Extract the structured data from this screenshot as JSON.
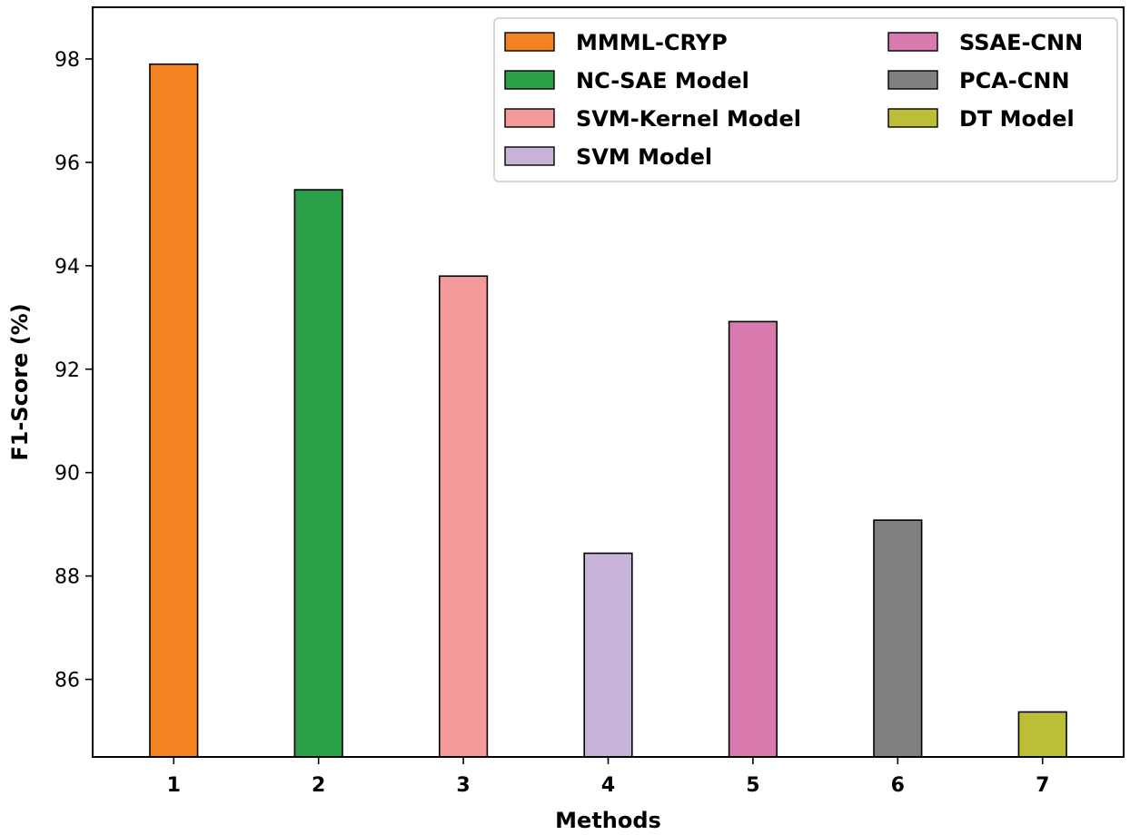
{
  "chart_data": {
    "type": "bar",
    "categories": [
      "1",
      "2",
      "3",
      "4",
      "5",
      "6",
      "7"
    ],
    "values": [
      97.9,
      95.47,
      93.8,
      88.44,
      92.92,
      89.08,
      85.37
    ],
    "colors": [
      "#f58220",
      "#2ca048",
      "#f49a9a",
      "#c8b3d8",
      "#d77aad",
      "#808080",
      "#bcbe37"
    ],
    "legend": [
      {
        "name": "MMML-CRYP",
        "color": "#f58220"
      },
      {
        "name": "NC-SAE Model",
        "color": "#2ca048"
      },
      {
        "name": "SVM-Kernel Model",
        "color": "#f49a9a"
      },
      {
        "name": "SVM Model",
        "color": "#c8b3d8"
      },
      {
        "name": "SSAE-CNN",
        "color": "#d77aad"
      },
      {
        "name": "PCA-CNN",
        "color": "#808080"
      },
      {
        "name": "DT Model",
        "color": "#bcbe37"
      }
    ],
    "legend_placement": "top-right",
    "xlabel": "Methods",
    "ylabel": "F1-Score (%)",
    "ylim": [
      84.5,
      99
    ],
    "yticks": [
      86,
      88,
      90,
      92,
      94,
      96,
      98
    ],
    "grid": false
  }
}
